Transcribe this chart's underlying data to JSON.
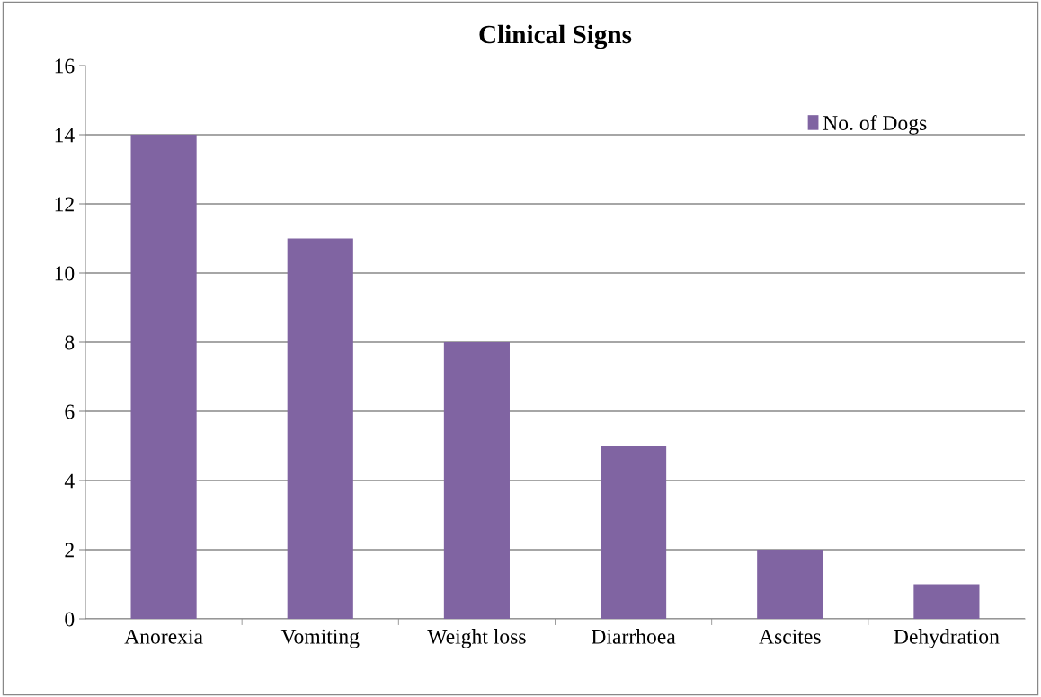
{
  "chart_data": {
    "type": "bar",
    "title": "Clinical Signs",
    "categories": [
      "Anorexia",
      "Vomiting",
      "Weight loss",
      "Diarrhoea",
      "Ascites",
      "Dehydration"
    ],
    "series": [
      {
        "name": "No. of Dogs",
        "color": "#8064a2",
        "values": [
          14,
          11,
          8,
          5,
          2,
          1
        ]
      }
    ],
    "ylim": [
      0,
      16
    ],
    "yticks": [
      0,
      2,
      4,
      6,
      8,
      10,
      12,
      14,
      16
    ],
    "grid": "y",
    "legend": "top right"
  }
}
